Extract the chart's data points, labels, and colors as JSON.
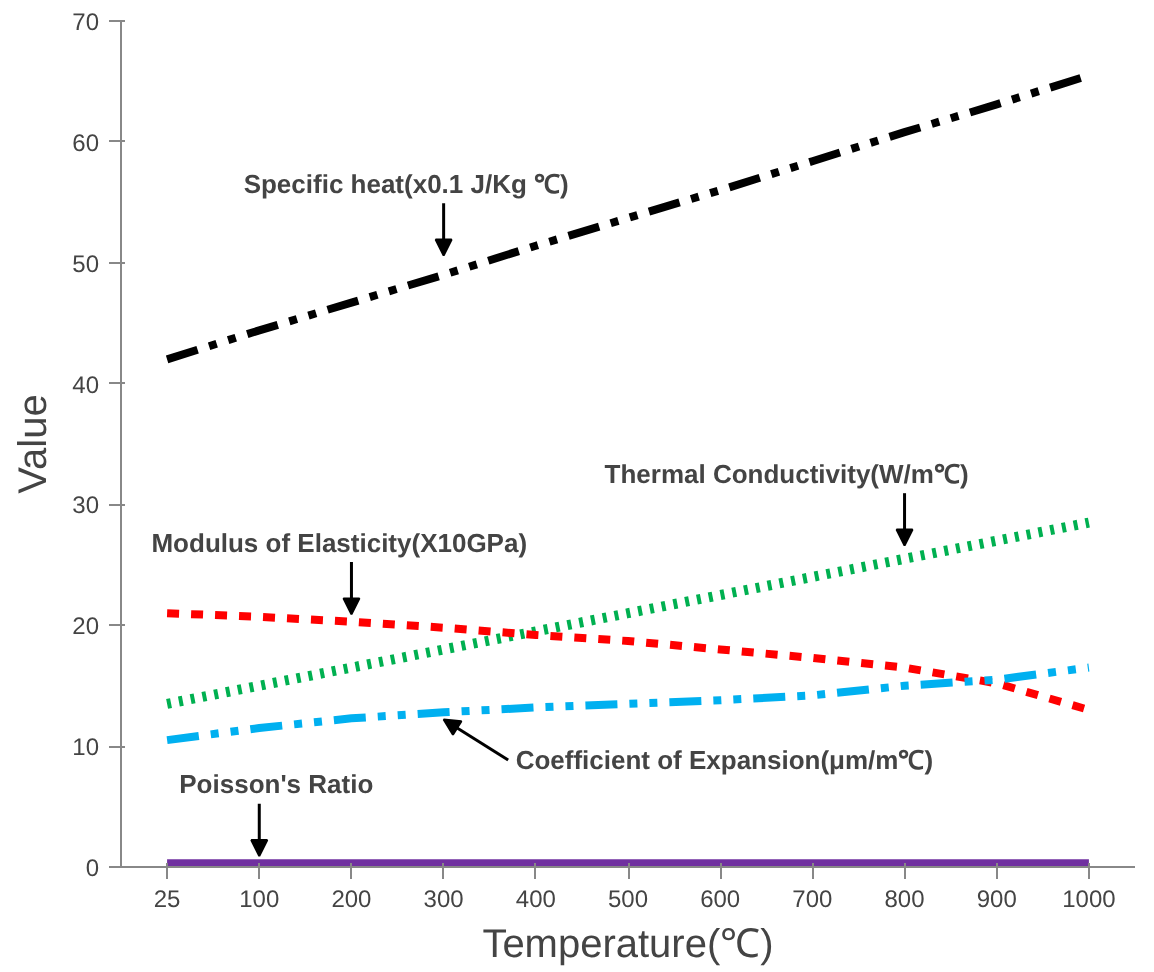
{
  "chart_data": {
    "type": "line",
    "xlabel": "Temperature(℃)",
    "ylabel": "Value",
    "categories": [
      "25",
      "100",
      "200",
      "300",
      "400",
      "500",
      "600",
      "700",
      "800",
      "900",
      "1000"
    ],
    "ylim": [
      0,
      70
    ],
    "yticks": [
      0,
      10,
      20,
      30,
      40,
      50,
      60,
      70
    ],
    "grid": false,
    "marker": "none",
    "series": [
      {
        "color": "#000000",
        "line_style": "dashdot",
        "values": [
          42,
          44.4,
          46.7,
          49,
          51.4,
          53.7,
          56,
          58.4,
          60.8,
          63.1,
          65.5
        ]
      },
      {
        "color": "#00b050",
        "line_style": "dotted",
        "values": [
          13.5,
          15,
          16.5,
          18,
          19.5,
          21,
          22.5,
          24,
          25.5,
          27,
          28.5
        ]
      },
      {
        "color": "#ff0000",
        "line_style": "dashed",
        "values": [
          21,
          20.7,
          20.3,
          19.8,
          19.2,
          18.7,
          18,
          17.3,
          16.5,
          15.2,
          13
        ]
      },
      {
        "color": "#00b0f0",
        "line_style": "dashdot",
        "values": [
          10.5,
          11.5,
          12.3,
          12.8,
          13.2,
          13.5,
          13.8,
          14.2,
          15,
          15.5,
          16.5
        ]
      },
      {
        "color": "#7030a0",
        "line_style": "solid",
        "values": [
          0.3,
          0.3,
          0.3,
          0.3,
          0.3,
          0.3,
          0.3,
          0.3,
          0.3,
          0.3,
          0.3
        ]
      }
    ],
    "annotations": [
      {
        "text": "Specific heat(x0.1 J/Kg ℃)",
        "x": "300",
        "y": 50
      },
      {
        "text": "Thermal Conductivity(W/m℃)",
        "x": "800",
        "y": 26
      },
      {
        "text": "Modulus of Elasticity(X10GPa)",
        "x": "200",
        "y": 20.3
      },
      {
        "text": "Coefficient of Expansion(μm/m℃)",
        "x": "300",
        "y": 12.8
      },
      {
        "text": "Poisson's Ratio",
        "x": "100",
        "y": 0.3
      }
    ]
  }
}
